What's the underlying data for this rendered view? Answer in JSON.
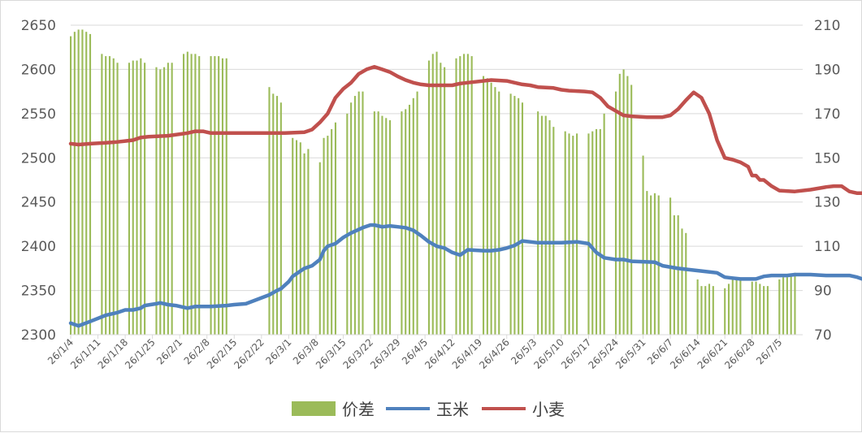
{
  "chart_data": {
    "type": "bar+line",
    "colors": {
      "spread": "#9bbb59",
      "corn": "#4f81bd",
      "wheat": "#c0504d",
      "grid": "#d9d9d9",
      "text": "#595959"
    },
    "y_left": {
      "min": 2300,
      "max": 2650,
      "ticks": [
        "2300",
        "2350",
        "2400",
        "2450",
        "2500",
        "2550",
        "2600",
        "2650"
      ]
    },
    "y_right": {
      "min": 70,
      "max": 210,
      "ticks": [
        "70",
        "90",
        "110",
        "130",
        "150",
        "170",
        "190",
        "210"
      ]
    },
    "x_ticks": [
      "26/1/4",
      "26/1/11",
      "26/1/18",
      "26/1/25",
      "26/2/1",
      "26/2/8",
      "26/2/15",
      "26/2/22",
      "26/3/1",
      "26/3/8",
      "26/3/15",
      "26/3/22",
      "26/3/29",
      "26/4/5",
      "26/4/12",
      "26/4/19",
      "26/4/26",
      "26/5/3",
      "26/5/10",
      "26/5/17",
      "26/5/24",
      "26/5/31",
      "26/6/7",
      "26/6/14",
      "26/6/21",
      "26/6/28",
      "26/7/5"
    ],
    "day_range": [
      0,
      188
    ],
    "legend": [
      "价差",
      "玉米",
      "小麦"
    ],
    "series": [
      {
        "key": "spread",
        "name": "价差",
        "axis": "right",
        "kind": "bar",
        "points": [
          [
            0,
            205
          ],
          [
            1,
            207
          ],
          [
            2,
            208
          ],
          [
            3,
            208
          ],
          [
            4,
            207
          ],
          [
            5,
            206
          ],
          [
            8,
            197
          ],
          [
            9,
            196
          ],
          [
            10,
            196
          ],
          [
            11,
            195
          ],
          [
            12,
            193
          ],
          [
            15,
            193
          ],
          [
            16,
            194
          ],
          [
            17,
            194
          ],
          [
            18,
            195
          ],
          [
            19,
            193
          ],
          [
            22,
            191
          ],
          [
            23,
            190
          ],
          [
            24,
            191
          ],
          [
            25,
            193
          ],
          [
            26,
            193
          ],
          [
            29,
            197
          ],
          [
            30,
            198
          ],
          [
            31,
            197
          ],
          [
            32,
            197
          ],
          [
            33,
            196
          ],
          [
            36,
            196
          ],
          [
            37,
            196
          ],
          [
            38,
            196
          ],
          [
            39,
            195
          ],
          [
            40,
            195
          ],
          [
            51,
            182
          ],
          [
            52,
            179
          ],
          [
            53,
            178
          ],
          [
            54,
            175
          ],
          [
            57,
            159
          ],
          [
            58,
            158
          ],
          [
            59,
            157
          ],
          [
            60,
            152
          ],
          [
            61,
            154
          ],
          [
            64,
            148
          ],
          [
            65,
            159
          ],
          [
            66,
            160
          ],
          [
            67,
            163
          ],
          [
            68,
            166
          ],
          [
            71,
            170
          ],
          [
            72,
            175
          ],
          [
            73,
            178
          ],
          [
            74,
            180
          ],
          [
            75,
            180
          ],
          [
            78,
            171
          ],
          [
            79,
            171
          ],
          [
            80,
            169
          ],
          [
            81,
            168
          ],
          [
            82,
            167
          ],
          [
            85,
            171
          ],
          [
            86,
            172
          ],
          [
            87,
            174
          ],
          [
            88,
            177
          ],
          [
            89,
            180
          ],
          [
            92,
            194
          ],
          [
            93,
            197
          ],
          [
            94,
            198
          ],
          [
            95,
            193
          ],
          [
            96,
            191
          ],
          [
            99,
            195
          ],
          [
            100,
            196
          ],
          [
            101,
            197
          ],
          [
            102,
            197
          ],
          [
            103,
            196
          ],
          [
            106,
            187
          ],
          [
            107,
            186
          ],
          [
            108,
            184
          ],
          [
            109,
            182
          ],
          [
            110,
            180
          ],
          [
            113,
            179
          ],
          [
            114,
            178
          ],
          [
            115,
            177
          ],
          [
            116,
            175
          ],
          [
            120,
            171
          ],
          [
            121,
            169
          ],
          [
            122,
            169
          ],
          [
            123,
            167
          ],
          [
            124,
            164
          ],
          [
            127,
            162
          ],
          [
            128,
            161
          ],
          [
            129,
            160
          ],
          [
            130,
            161
          ],
          [
            133,
            161
          ],
          [
            134,
            162
          ],
          [
            135,
            163
          ],
          [
            136,
            163
          ],
          [
            137,
            170
          ],
          [
            140,
            180
          ],
          [
            141,
            188
          ],
          [
            142,
            190
          ],
          [
            143,
            187
          ],
          [
            144,
            183
          ],
          [
            147,
            151
          ],
          [
            148,
            135
          ],
          [
            149,
            133
          ],
          [
            150,
            134
          ],
          [
            151,
            133
          ],
          [
            154,
            132
          ],
          [
            155,
            124
          ],
          [
            156,
            124
          ],
          [
            157,
            118
          ],
          [
            158,
            116
          ],
          [
            161,
            95
          ],
          [
            162,
            92
          ],
          [
            163,
            92
          ],
          [
            164,
            93
          ],
          [
            165,
            92
          ],
          [
            168,
            91
          ],
          [
            169,
            93
          ],
          [
            170,
            95
          ],
          [
            171,
            95
          ],
          [
            172,
            95
          ],
          [
            175,
            94
          ],
          [
            176,
            94
          ],
          [
            177,
            93
          ],
          [
            178,
            92
          ],
          [
            179,
            92
          ],
          [
            182,
            95
          ],
          [
            183,
            96
          ],
          [
            184,
            96
          ],
          [
            185,
            97
          ],
          [
            186,
            98
          ]
        ]
      },
      {
        "key": "corn",
        "name": "玉米",
        "axis": "left",
        "kind": "line",
        "points": [
          [
            0,
            2313
          ],
          [
            2,
            2310
          ],
          [
            5,
            2315
          ],
          [
            9,
            2322
          ],
          [
            12,
            2325
          ],
          [
            14,
            2328
          ],
          [
            16,
            2328
          ],
          [
            18,
            2330
          ],
          [
            19,
            2333
          ],
          [
            22,
            2335
          ],
          [
            23,
            2336
          ],
          [
            25,
            2334
          ],
          [
            27,
            2333
          ],
          [
            30,
            2330
          ],
          [
            32,
            2332
          ],
          [
            36,
            2332
          ],
          [
            40,
            2333
          ],
          [
            42,
            2334
          ],
          [
            45,
            2335
          ],
          [
            51,
            2345
          ],
          [
            53,
            2350
          ],
          [
            54,
            2352
          ],
          [
            56,
            2360
          ],
          [
            57,
            2366
          ],
          [
            59,
            2372
          ],
          [
            60,
            2375
          ],
          [
            62,
            2378
          ],
          [
            64,
            2385
          ],
          [
            65,
            2395
          ],
          [
            66,
            2400
          ],
          [
            68,
            2403
          ],
          [
            70,
            2410
          ],
          [
            72,
            2415
          ],
          [
            75,
            2421
          ],
          [
            77,
            2424
          ],
          [
            78,
            2424
          ],
          [
            80,
            2422
          ],
          [
            82,
            2423
          ],
          [
            84,
            2422
          ],
          [
            86,
            2421
          ],
          [
            88,
            2418
          ],
          [
            90,
            2412
          ],
          [
            92,
            2405
          ],
          [
            94,
            2400
          ],
          [
            96,
            2398
          ],
          [
            98,
            2393
          ],
          [
            100,
            2390
          ],
          [
            102,
            2396
          ],
          [
            106,
            2395
          ],
          [
            108,
            2395
          ],
          [
            110,
            2396
          ],
          [
            112,
            2398
          ],
          [
            114,
            2401
          ],
          [
            116,
            2406
          ],
          [
            118,
            2405
          ],
          [
            120,
            2404
          ],
          [
            126,
            2404
          ],
          [
            130,
            2405
          ],
          [
            133,
            2403
          ],
          [
            135,
            2393
          ],
          [
            137,
            2387
          ],
          [
            140,
            2385
          ],
          [
            142,
            2385
          ],
          [
            144,
            2383
          ],
          [
            150,
            2382
          ],
          [
            152,
            2378
          ],
          [
            156,
            2375
          ],
          [
            162,
            2372
          ],
          [
            166,
            2370
          ],
          [
            168,
            2365
          ],
          [
            170,
            2364
          ],
          [
            172,
            2363
          ],
          [
            176,
            2363
          ],
          [
            178,
            2366
          ],
          [
            180,
            2367
          ],
          [
            184,
            2367
          ],
          [
            186,
            2368
          ],
          [
            190,
            2368
          ],
          [
            194,
            2367
          ],
          [
            198,
            2367
          ],
          [
            200,
            2367
          ],
          [
            202,
            2365
          ],
          [
            204,
            2362
          ],
          [
            206,
            2360
          ],
          [
            208,
            2358
          ],
          [
            211,
            2356
          ],
          [
            212,
            2355
          ]
        ]
      },
      {
        "key": "wheat",
        "name": "小麦",
        "axis": "left",
        "kind": "line",
        "points": [
          [
            0,
            2516
          ],
          [
            2,
            2515
          ],
          [
            5,
            2516
          ],
          [
            9,
            2517
          ],
          [
            12,
            2518
          ],
          [
            14,
            2519
          ],
          [
            16,
            2520
          ],
          [
            18,
            2523
          ],
          [
            20,
            2524
          ],
          [
            25,
            2525
          ],
          [
            30,
            2528
          ],
          [
            32,
            2530
          ],
          [
            34,
            2530
          ],
          [
            36,
            2528
          ],
          [
            40,
            2528
          ],
          [
            45,
            2528
          ],
          [
            55,
            2528
          ],
          [
            60,
            2529
          ],
          [
            62,
            2532
          ],
          [
            64,
            2540
          ],
          [
            66,
            2550
          ],
          [
            68,
            2568
          ],
          [
            70,
            2578
          ],
          [
            72,
            2585
          ],
          [
            74,
            2595
          ],
          [
            76,
            2600
          ],
          [
            78,
            2603
          ],
          [
            80,
            2600
          ],
          [
            82,
            2597
          ],
          [
            84,
            2592
          ],
          [
            86,
            2588
          ],
          [
            88,
            2585
          ],
          [
            90,
            2583
          ],
          [
            92,
            2582
          ],
          [
            95,
            2582
          ],
          [
            98,
            2582
          ],
          [
            100,
            2584
          ],
          [
            104,
            2586
          ],
          [
            108,
            2588
          ],
          [
            112,
            2587
          ],
          [
            114,
            2585
          ],
          [
            116,
            2583
          ],
          [
            118,
            2582
          ],
          [
            120,
            2580
          ],
          [
            124,
            2579
          ],
          [
            126,
            2577
          ],
          [
            128,
            2576
          ],
          [
            132,
            2575
          ],
          [
            134,
            2574
          ],
          [
            136,
            2568
          ],
          [
            138,
            2558
          ],
          [
            140,
            2553
          ],
          [
            142,
            2548
          ],
          [
            144,
            2547
          ],
          [
            148,
            2546
          ],
          [
            152,
            2546
          ],
          [
            154,
            2548
          ],
          [
            156,
            2555
          ],
          [
            158,
            2565
          ],
          [
            160,
            2574
          ],
          [
            162,
            2568
          ],
          [
            164,
            2550
          ],
          [
            166,
            2520
          ],
          [
            168,
            2500
          ],
          [
            170,
            2498
          ],
          [
            172,
            2495
          ],
          [
            174,
            2490
          ],
          [
            175,
            2480
          ],
          [
            176,
            2480
          ],
          [
            177,
            2475
          ],
          [
            178,
            2475
          ],
          [
            180,
            2468
          ],
          [
            182,
            2463
          ],
          [
            186,
            2462
          ],
          [
            190,
            2464
          ],
          [
            194,
            2467
          ],
          [
            196,
            2468
          ],
          [
            198,
            2468
          ],
          [
            200,
            2462
          ],
          [
            202,
            2460
          ],
          [
            204,
            2460
          ],
          [
            208,
            2458
          ],
          [
            212,
            2456
          ],
          [
            214,
            2456
          ]
        ]
      }
    ]
  }
}
